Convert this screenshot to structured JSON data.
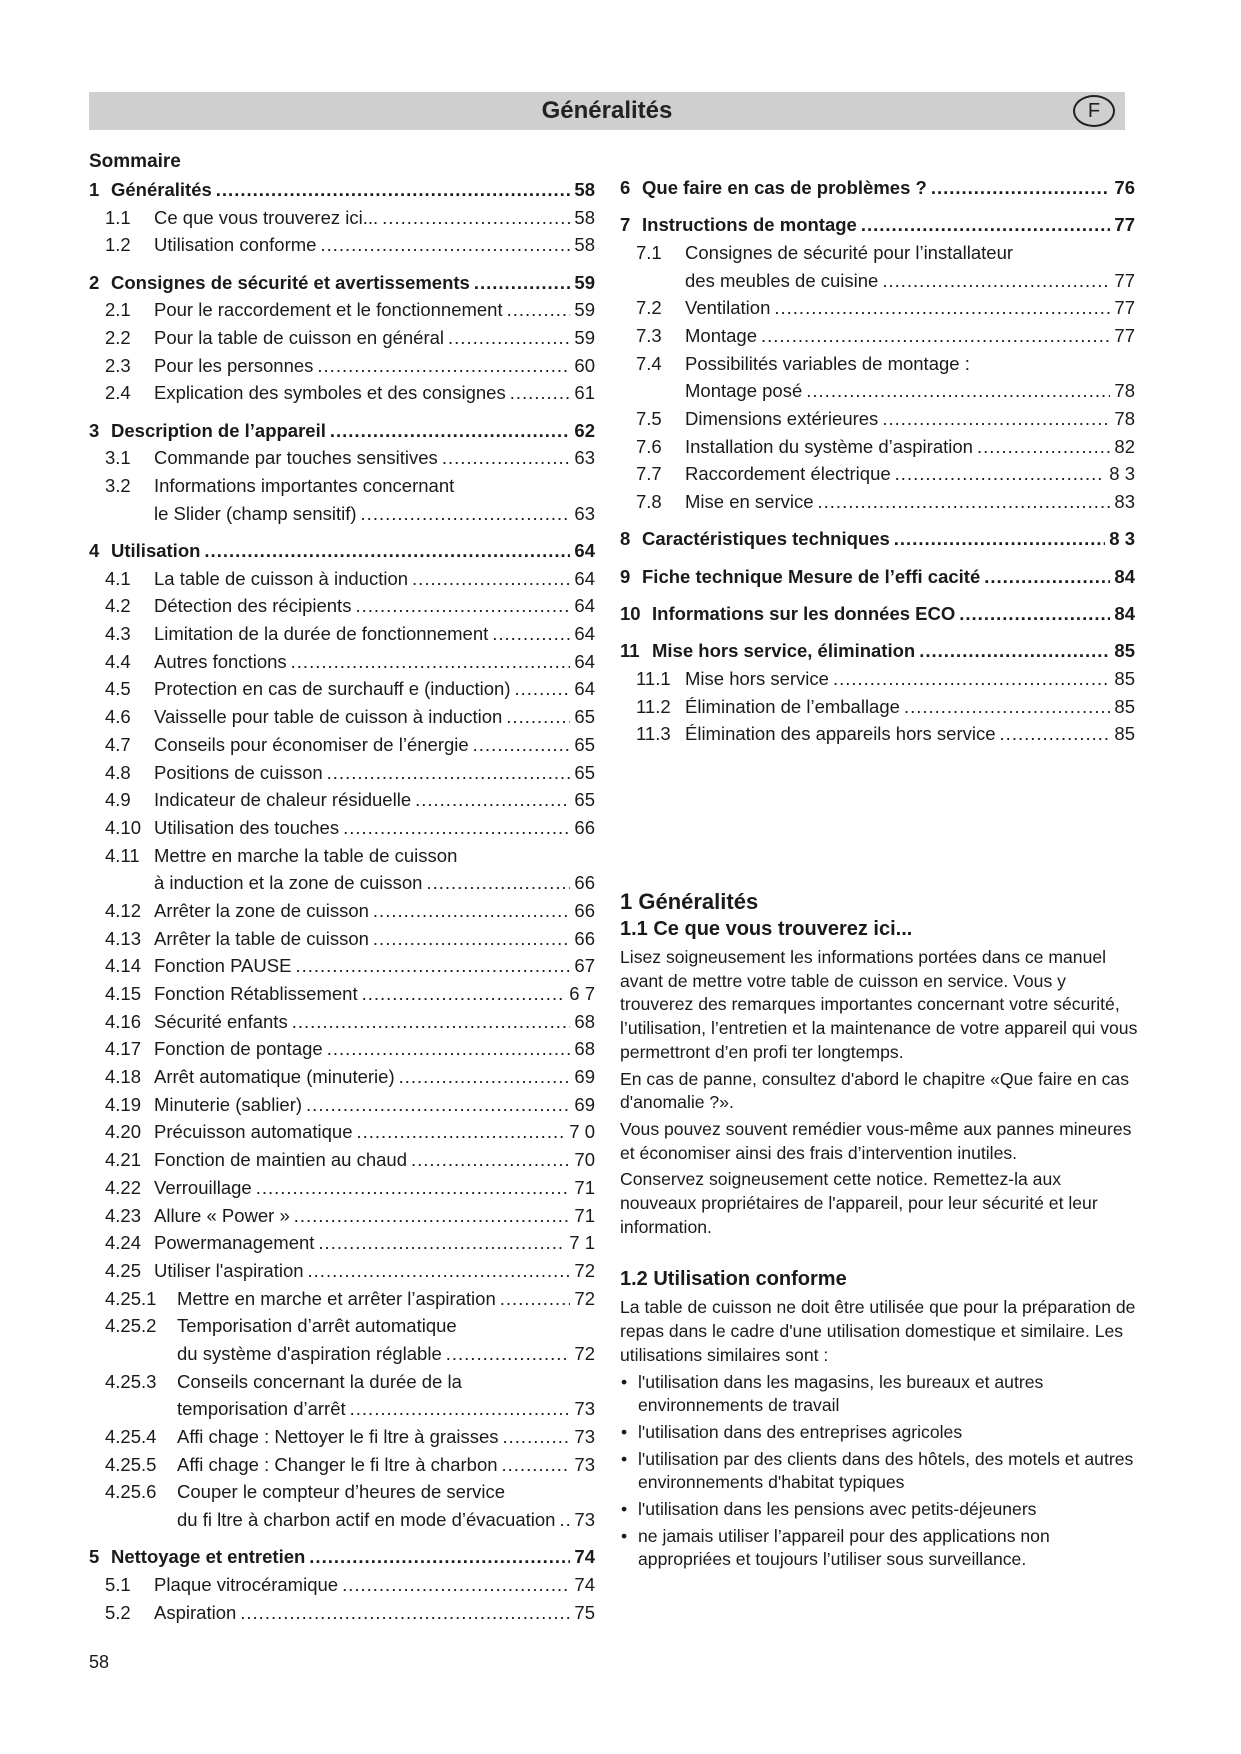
{
  "header": {
    "title": "Généralités",
    "lang_badge": "F"
  },
  "toc": {
    "title": "Sommaire",
    "left": [
      {
        "level": 1,
        "num": "1",
        "title": "Généralités",
        "page": "58"
      },
      {
        "level": 2,
        "num": "1.1",
        "title": "Ce que vous trouverez ici...",
        "page": "58"
      },
      {
        "level": 2,
        "num": "1.2",
        "title": "Utilisation conforme",
        "page": "58"
      },
      {
        "level": 1,
        "num": "2",
        "title": "Consignes de sécurité et avertissements",
        "page": "59"
      },
      {
        "level": 2,
        "num": "2.1",
        "title": "Pour le raccordement et le fonctionnement",
        "page": "59"
      },
      {
        "level": 2,
        "num": "2.2",
        "title": "Pour la table de cuisson en général",
        "page": "59"
      },
      {
        "level": 2,
        "num": "2.3",
        "title": "Pour les personnes",
        "page": "60"
      },
      {
        "level": 2,
        "num": "2.4",
        "title": "Explication des symboles et des consignes",
        "page": "61"
      },
      {
        "level": 1,
        "num": "3",
        "title": "Description de l’appareil",
        "page": "62"
      },
      {
        "level": 2,
        "num": "3.1",
        "title": "Commande par touches sensitives",
        "page": "63"
      },
      {
        "level": 2,
        "num": "3.2",
        "title": "Informations importantes concernant",
        "title2": "le Slider (champ sensitif)",
        "page": "63"
      },
      {
        "level": 1,
        "num": "4",
        "title": "Utilisation",
        "page": "64"
      },
      {
        "level": 2,
        "num": "4.1",
        "title": "La table de cuisson à induction",
        "page": "64"
      },
      {
        "level": 2,
        "num": "4.2",
        "title": "Détection des récipients",
        "page": "64"
      },
      {
        "level": 2,
        "num": "4.3",
        "title": "Limitation de la durée de fonctionnement",
        "page": "64"
      },
      {
        "level": 2,
        "num": "4.4",
        "title": "Autres fonctions",
        "page": "64"
      },
      {
        "level": 2,
        "num": "4.5",
        "title": "Protection en cas de surchauff e (induction)",
        "page": "64"
      },
      {
        "level": 2,
        "num": "4.6",
        "title": "Vaisselle pour table de cuisson à induction",
        "page": "65"
      },
      {
        "level": 2,
        "num": "4.7",
        "title": "Conseils pour économiser de l’énergie",
        "page": "65"
      },
      {
        "level": 2,
        "num": "4.8",
        "title": "Positions de cuisson",
        "page": "65"
      },
      {
        "level": 2,
        "num": "4.9",
        "title": "Indicateur de chaleur résiduelle",
        "page": "65"
      },
      {
        "level": 2,
        "num": "4.10",
        "title": "Utilisation des touches",
        "page": "66"
      },
      {
        "level": 2,
        "num": "4.11",
        "title": "Mettre en marche la table de cuisson",
        "title2": "à induction et la zone de cuisson",
        "page": "66"
      },
      {
        "level": 2,
        "num": "4.12",
        "title": "Arrêter la zone de cuisson",
        "page": "66"
      },
      {
        "level": 2,
        "num": "4.13",
        "title": "Arrêter la table de cuisson",
        "page": "66"
      },
      {
        "level": 2,
        "num": "4.14",
        "title": "Fonction PAUSE",
        "page": "67"
      },
      {
        "level": 2,
        "num": "4.15",
        "title": "Fonction Rétablissement",
        "page": "6 7"
      },
      {
        "level": 2,
        "num": "4.16",
        "title": "Sécurité enfants",
        "page": "68"
      },
      {
        "level": 2,
        "num": "4.17",
        "title": "Fonction de pontage",
        "page": "68"
      },
      {
        "level": 2,
        "num": "4.18",
        "title": "Arrêt automatique (minuterie)",
        "page": "69"
      },
      {
        "level": 2,
        "num": "4.19",
        "title": "Minuterie (sablier)",
        "page": "69"
      },
      {
        "level": 2,
        "num": "4.20",
        "title": "Précuisson automatique",
        "page": "7 0"
      },
      {
        "level": 2,
        "num": "4.21",
        "title": "Fonction de maintien au chaud",
        "page": "70"
      },
      {
        "level": 2,
        "num": "4.22",
        "title": "Verrouillage",
        "page": "71"
      },
      {
        "level": 2,
        "num": "4.23",
        "title": "Allure « Power »",
        "page": "71"
      },
      {
        "level": 2,
        "num": "4.24",
        "title": "Powermanagement",
        "page": "7 1"
      },
      {
        "level": 2,
        "num": "4.25",
        "title": "Utiliser l'aspiration",
        "page": "72"
      },
      {
        "level": 3,
        "num": "4.25.1",
        "title": "Mettre en marche et arrêter l’aspiration",
        "page": "72"
      },
      {
        "level": 3,
        "num": "4.25.2",
        "title": "Temporisation d’arrêt automatique",
        "title2": "du système d'aspiration réglable",
        "page": "72"
      },
      {
        "level": 3,
        "num": "4.25.3",
        "title": "Conseils concernant la durée de la",
        "title2": "temporisation d’arrêt",
        "page": "73"
      },
      {
        "level": 3,
        "num": "4.25.4",
        "title": "Affi  chage : Nettoyer le fi ltre à graisses",
        "page": "73"
      },
      {
        "level": 3,
        "num": "4.25.5",
        "title": "Affi  chage : Changer le fi ltre à charbon",
        "page": "73"
      },
      {
        "level": 3,
        "num": "4.25.6",
        "title": "Couper le compteur d’heures de service",
        "title2": "du fi ltre à charbon actif en mode d’évacuation",
        "page": "73"
      },
      {
        "level": 1,
        "num": "5",
        "title": "Nettoyage et entretien",
        "page": "74"
      },
      {
        "level": 2,
        "num": "5.1",
        "title": "Plaque vitrocéramique",
        "page": "74"
      },
      {
        "level": 2,
        "num": "5.2",
        "title": "Aspiration",
        "page": "75"
      }
    ],
    "right": [
      {
        "level": 1,
        "num": "6",
        "title": "Que faire en cas de problèmes ?",
        "page": "76"
      },
      {
        "level": 1,
        "num": "7",
        "title": "Instructions de montage",
        "page": "77"
      },
      {
        "level": 2,
        "num": "7.1",
        "title": "Consignes de sécurité pour l’installateur",
        "title2": "des meubles de cuisine",
        "page": "77"
      },
      {
        "level": 2,
        "num": "7.2",
        "title": "Ventilation",
        "page": "77"
      },
      {
        "level": 2,
        "num": "7.3",
        "title": "Montage",
        "page": "77"
      },
      {
        "level": 2,
        "num": "7.4",
        "title": "Possibilités variables de montage :",
        "title2": "Montage posé",
        "page": "78"
      },
      {
        "level": 2,
        "num": "7.5",
        "title": "Dimensions extérieures",
        "page": "78"
      },
      {
        "level": 2,
        "num": "7.6",
        "title": "Installation du système d’aspiration",
        "page": "82"
      },
      {
        "level": 2,
        "num": "7.7",
        "title": "Raccordement électrique",
        "page": "8 3"
      },
      {
        "level": 2,
        "num": "7.8",
        "title": "Mise en service",
        "page": "83"
      },
      {
        "level": 1,
        "num": "8",
        "title": "Caractéristiques techniques",
        "page": "8 3"
      },
      {
        "level": 1,
        "num": "9",
        "title": "Fiche technique Mesure de l’effi  cacité",
        "page": "84"
      },
      {
        "level": 1,
        "num": "10",
        "title": "Informations sur les données ECO",
        "page": "84"
      },
      {
        "level": 1,
        "num": "11",
        "title": "Mise hors service, élimination",
        "page": "85"
      },
      {
        "level": 2,
        "num": "11.1",
        "title": "Mise hors service",
        "page": "85"
      },
      {
        "level": 2,
        "num": "11.2",
        "title": "Élimination de l’emballage",
        "page": "85"
      },
      {
        "level": 2,
        "num": "11.3",
        "title": "Élimination des appareils hors service",
        "page": "85"
      }
    ]
  },
  "section1": {
    "heading": "1  Généralités",
    "sub1": {
      "heading": "1.1  Ce que vous trouverez ici...",
      "paragraphs": [
        "Lisez soigneusement les informations portées dans ce manuel avant de mettre votre table de cuisson en service. Vous y trouverez des remarques importantes concernant votre sécurité, l’utilisation, l’entretien et la maintenance de votre appareil qui vous permettront d’en profi ter longtemps.",
        "En cas de panne, consultez d'abord le chapitre «Que faire en cas d'anomalie ?».",
        "Vous pouvez souvent remédier vous-même aux pannes mineures et économiser ainsi des frais d’intervention inutiles.",
        "Conservez soigneusement cette notice. Remettez-la aux nouveaux propriétaires de l'appareil, pour leur sécurité et leur information."
      ]
    },
    "sub2": {
      "heading": "1.2  Utilisation conforme",
      "intro": "La table de cuisson ne doit être utilisée que pour la préparation de repas dans le cadre d'une utilisation domestique et similaire. Les utilisations similaires sont :",
      "bullets": [
        "l'utilisation dans les magasins, les bureaux et autres environnements de travail",
        "l'utilisation dans des entreprises agricoles",
        "l'utilisation par des clients dans des hôtels, des motels et autres environnements d'habitat typiques",
        "l'utilisation dans les pensions avec petits-déjeuners",
        "ne jamais utiliser l’appareil pour des applications non appropriées et toujours l’utiliser sous surveillance."
      ]
    }
  },
  "page_number": "58"
}
